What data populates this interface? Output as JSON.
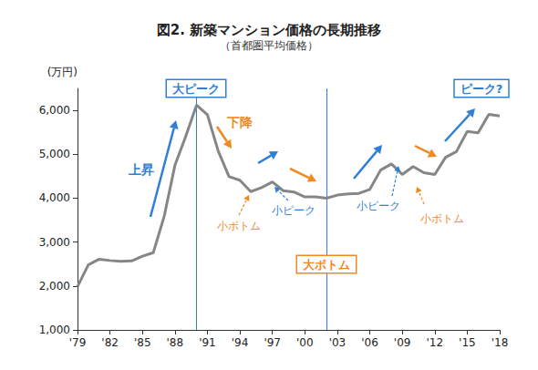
{
  "chart_data": {
    "type": "line",
    "title": "図2. 新築マンション価格の長期推移",
    "subtitle": "（首都圏平均価格）",
    "y_label": "(万円)",
    "categories": [
      "'79",
      null,
      null,
      "'82",
      null,
      null,
      "'85",
      null,
      null,
      "'88",
      null,
      null,
      "'91",
      null,
      null,
      "'94",
      null,
      null,
      "'97",
      null,
      null,
      "'00",
      null,
      null,
      "'03",
      null,
      null,
      "'06",
      null,
      null,
      "'09",
      null,
      null,
      "'12",
      null,
      null,
      "'15",
      null,
      null,
      "'18"
    ],
    "values": [
      1990,
      2480,
      2610,
      2580,
      2560,
      2570,
      2680,
      2760,
      3580,
      4750,
      5410,
      6120,
      5900,
      5070,
      4490,
      4410,
      4150,
      4240,
      4370,
      4170,
      4140,
      4030,
      4030,
      4000,
      4070,
      4100,
      4110,
      4200,
      4640,
      4780,
      4540,
      4720,
      4580,
      4540,
      4930,
      5060,
      5520,
      5490,
      5910,
      5870
    ],
    "color": "#868686",
    "ylim": [
      1000,
      6500
    ],
    "yticks": [
      {
        "value": 1000,
        "label": "1,000"
      },
      {
        "value": 2000,
        "label": "2,000"
      },
      {
        "value": 3000,
        "label": "3,000"
      },
      {
        "value": 4000,
        "label": "4,000"
      },
      {
        "value": 5000,
        "label": "5,000"
      },
      {
        "value": 6000,
        "label": "6,000"
      }
    ],
    "grid": false,
    "annotations": [
      {
        "text": "大ピーク",
        "color": "#2f7fd6"
      },
      {
        "text": "上昇",
        "color": "#2f7fd6"
      },
      {
        "text": "下降",
        "color": "#f0891e"
      },
      {
        "text": "小ボトム",
        "color": "#f0891e"
      },
      {
        "text": "小ピーク",
        "color": "#2f7fd6"
      },
      {
        "text": "大ボトム",
        "color": "#f0891e"
      },
      {
        "text": "小ピーク",
        "color": "#2f7fd6"
      },
      {
        "text": "小ボトム",
        "color": "#f0891e"
      },
      {
        "text": "ピーク?",
        "color": "#2f7fd6"
      }
    ]
  }
}
